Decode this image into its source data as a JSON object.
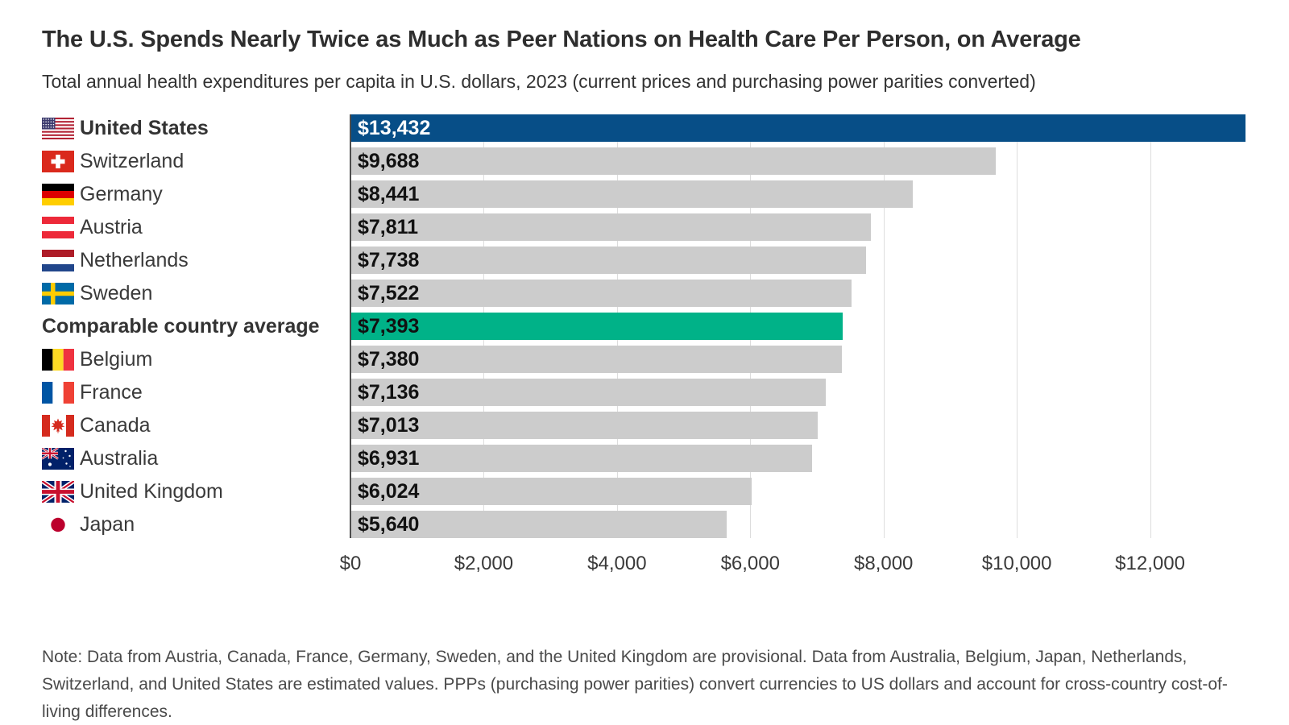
{
  "header": {
    "title": "The U.S. Spends Nearly Twice as Much as Peer Nations on Health Care Per Person, on Average",
    "subtitle": "Total annual health expenditures per capita in U.S. dollars, 2023 (current prices and purchasing power parities converted)"
  },
  "chart_data": {
    "type": "bar",
    "orientation": "horizontal",
    "title": "The U.S. Spends Nearly Twice as Much as Peer Nations on Health Care Per Person, on Average",
    "subtitle": "Total annual health expenditures per capita in U.S. dollars, 2023 (current prices and purchasing power parities converted)",
    "xlabel": "",
    "ylabel": "",
    "x_max": 13432,
    "grid": true,
    "x_ticks": [
      {
        "value": 0,
        "label": "$0"
      },
      {
        "value": 2000,
        "label": "$2,000"
      },
      {
        "value": 4000,
        "label": "$4,000"
      },
      {
        "value": 6000,
        "label": "$6,000"
      },
      {
        "value": 8000,
        "label": "$8,000"
      },
      {
        "value": 10000,
        "label": "$10,000"
      },
      {
        "value": 12000,
        "label": "$12,000"
      }
    ],
    "rows": [
      {
        "id": "united-states",
        "label": "United States",
        "value": 13432,
        "display_value": "$13,432",
        "flag": "united-states",
        "bold": true,
        "emphasis": "primary"
      },
      {
        "id": "switzerland",
        "label": "Switzerland",
        "value": 9688,
        "display_value": "$9,688",
        "flag": "switzerland",
        "bold": false,
        "emphasis": "default"
      },
      {
        "id": "germany",
        "label": "Germany",
        "value": 8441,
        "display_value": "$8,441",
        "flag": "germany",
        "bold": false,
        "emphasis": "default"
      },
      {
        "id": "austria",
        "label": "Austria",
        "value": 7811,
        "display_value": "$7,811",
        "flag": "austria",
        "bold": false,
        "emphasis": "default"
      },
      {
        "id": "netherlands",
        "label": "Netherlands",
        "value": 7738,
        "display_value": "$7,738",
        "flag": "netherlands",
        "bold": false,
        "emphasis": "default"
      },
      {
        "id": "sweden",
        "label": "Sweden",
        "value": 7522,
        "display_value": "$7,522",
        "flag": "sweden",
        "bold": false,
        "emphasis": "default"
      },
      {
        "id": "comparable-country-average",
        "label": "Comparable country average",
        "value": 7393,
        "display_value": "$7,393",
        "flag": null,
        "bold": true,
        "emphasis": "average"
      },
      {
        "id": "belgium",
        "label": "Belgium",
        "value": 7380,
        "display_value": "$7,380",
        "flag": "belgium",
        "bold": false,
        "emphasis": "default"
      },
      {
        "id": "france",
        "label": "France",
        "value": 7136,
        "display_value": "$7,136",
        "flag": "france",
        "bold": false,
        "emphasis": "default"
      },
      {
        "id": "canada",
        "label": "Canada",
        "value": 7013,
        "display_value": "$7,013",
        "flag": "canada",
        "bold": false,
        "emphasis": "default"
      },
      {
        "id": "australia",
        "label": "Australia",
        "value": 6931,
        "display_value": "$6,931",
        "flag": "australia",
        "bold": false,
        "emphasis": "default"
      },
      {
        "id": "united-kingdom",
        "label": "United Kingdom",
        "value": 6024,
        "display_value": "$6,024",
        "flag": "united-kingdom",
        "bold": false,
        "emphasis": "default"
      },
      {
        "id": "japan",
        "label": "Japan",
        "value": 5640,
        "display_value": "$5,640",
        "flag": "japan",
        "bold": false,
        "emphasis": "default"
      }
    ],
    "colors": {
      "primary": "#074E87",
      "average": "#00B288",
      "default": "#CCCCCC",
      "value_text": "#111111",
      "value_text_on_primary": "#FFFFFF",
      "gridline": "#DDDDDD",
      "axis_line": "#4D4D4D"
    },
    "icons": [
      "flag-united-states-icon",
      "flag-switzerland-icon",
      "flag-germany-icon",
      "flag-austria-icon",
      "flag-netherlands-icon",
      "flag-sweden-icon",
      "flag-belgium-icon",
      "flag-france-icon",
      "flag-canada-icon",
      "flag-australia-icon",
      "flag-united-kingdom-icon",
      "flag-japan-icon"
    ]
  },
  "note": {
    "text": "Note: Data from Austria, Canada, France, Germany, Sweden, and the United Kingdom are provisional. Data from Australia, Belgium, Japan, Netherlands, Switzerland, and United States are estimated values. PPPs (purchasing power parities) convert currencies to US dollars and account for cross-country cost-of-living differences."
  }
}
